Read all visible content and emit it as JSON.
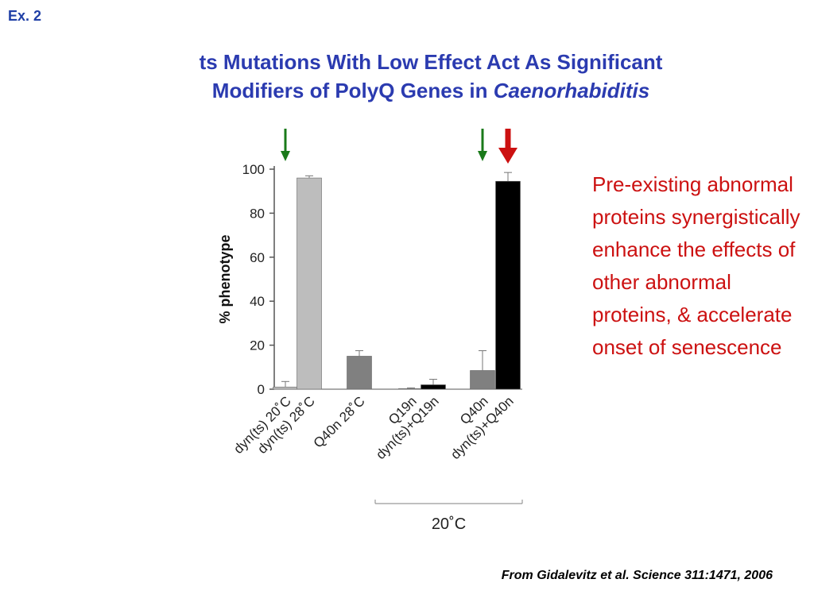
{
  "slide": {
    "ex_label": "Ex. 2",
    "title_line1": "ts Mutations With Low Effect Act As Significant",
    "title_line2_prefix": "Modifiers of PolyQ Genes in ",
    "title_line2_italic": "Caenorhabiditis",
    "side_text": "Pre-existing abnormal proteins synergistically enhance the effects of other abnormal proteins, & accelerate onset of senescence",
    "citation": "From Gidalevitz et al. Science 311:1471, 2006"
  },
  "colors": {
    "title": "#2b3bb0",
    "side_text": "#cc1111",
    "arrow_green": "#1a7a1a",
    "arrow_red": "#cc1111"
  },
  "chart_data": {
    "type": "bar",
    "ylabel": "% phenotype",
    "xlabel": "",
    "ylim": [
      0,
      100
    ],
    "yticks": [
      0,
      20,
      40,
      60,
      80,
      100
    ],
    "grid": false,
    "categories": [
      "dyn(ts) 20˚C",
      "dyn(ts)  28˚C",
      "Q40n 28˚C",
      "Q19n",
      "dyn(ts)+Q19n",
      "Q40n",
      "dyn(ts)+Q40n"
    ],
    "values": [
      1,
      96,
      15,
      0.3,
      2,
      8.5,
      94.5
    ],
    "errors": [
      2.5,
      1,
      2.5,
      0.3,
      2.5,
      9,
      4
    ],
    "bar_colors": [
      "#bdbdbd",
      "#bdbdbd",
      "#808080",
      "#808080",
      "#000000",
      "#808080",
      "#000000"
    ],
    "group_bracket": {
      "label": "20˚C",
      "first_category": 3,
      "last_category": 6
    },
    "arrows": [
      {
        "category": 0,
        "color": "green",
        "size": "small"
      },
      {
        "category": 5,
        "color": "green",
        "size": "small"
      },
      {
        "category": 6,
        "color": "red",
        "size": "large"
      }
    ]
  }
}
